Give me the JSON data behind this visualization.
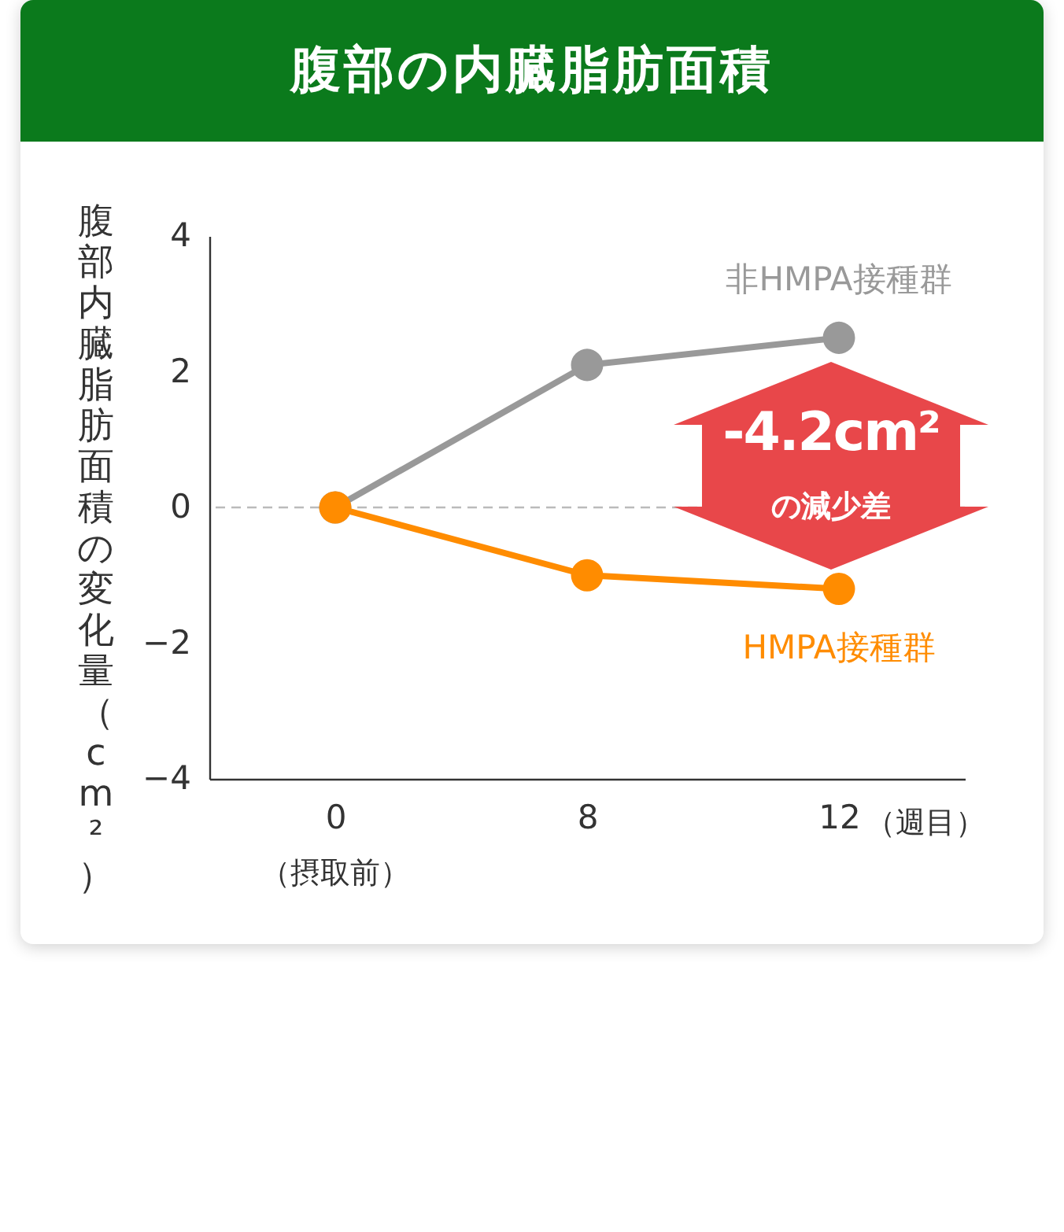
{
  "chart_data": {
    "type": "line",
    "title": "腹部の内臓脂肪面積",
    "ylabel": "腹部内臓脂肪面積の変化量（cm²）",
    "categories": [
      "0",
      "8",
      "12"
    ],
    "series": [
      {
        "name": "非HMPA接種群",
        "color": "#999999",
        "values": [
          0,
          2.1,
          2.5
        ]
      },
      {
        "name": "HMPA接種群",
        "color": "#ff8c00",
        "values": [
          0,
          -1.0,
          -1.2
        ]
      }
    ],
    "ylim": [
      -4,
      4
    ],
    "yticks": [
      -4,
      -2,
      0,
      2,
      4
    ],
    "grid": false,
    "legend": false,
    "marker": "circle",
    "line_style": "solid",
    "ref_lines": [
      {
        "axis": "y",
        "value": 0,
        "color": "#bbbbbb",
        "line_style": "dashed"
      }
    ],
    "annotations": [
      "（摂取前）",
      "（週目）",
      "-4.2cm²",
      "の減少差"
    ]
  }
}
